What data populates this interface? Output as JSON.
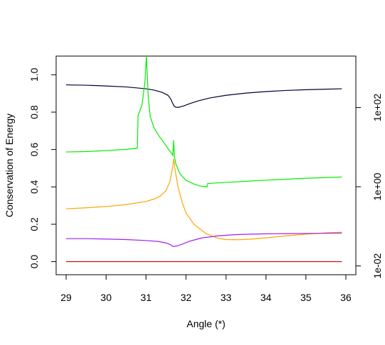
{
  "chart_data": {
    "type": "line",
    "title": "",
    "xlabel": "Angle (*)",
    "ylabel": "Conservation of Energy",
    "y2label": "",
    "xlim": [
      28.75,
      36.25
    ],
    "ylim": [
      -0.07,
      1.1
    ],
    "y2_scale": "log",
    "y2lim": [
      0.006,
      2000
    ],
    "x_ticks": [
      29,
      30,
      31,
      32,
      33,
      34,
      35,
      36
    ],
    "x_tick_labels": [
      "29",
      "30",
      "31",
      "32",
      "33",
      "34",
      "35",
      "36"
    ],
    "y_ticks": [
      0.0,
      0.2,
      0.4,
      0.6,
      0.8,
      1.0
    ],
    "y_tick_labels": [
      "0.0",
      "0.2",
      "0.4",
      "0.6",
      "0.8",
      "1.0"
    ],
    "y2_ticks": [
      0.01,
      1,
      100
    ],
    "y2_tick_labels": [
      "1e-02",
      "1e+00",
      "1e+02"
    ],
    "grid": false,
    "legend": "none",
    "series": [
      {
        "color": "#000033",
        "points": [
          [
            29.0,
            0.946
          ],
          [
            29.5,
            0.944
          ],
          [
            30.0,
            0.94
          ],
          [
            30.5,
            0.935
          ],
          [
            31.0,
            0.925
          ],
          [
            31.2,
            0.918
          ],
          [
            31.4,
            0.906
          ],
          [
            31.55,
            0.89
          ],
          [
            31.62,
            0.87
          ],
          [
            31.66,
            0.85
          ],
          [
            31.7,
            0.833
          ],
          [
            31.75,
            0.826
          ],
          [
            31.82,
            0.826
          ],
          [
            31.95,
            0.834
          ],
          [
            32.1,
            0.846
          ],
          [
            32.3,
            0.86
          ],
          [
            32.6,
            0.876
          ],
          [
            33.0,
            0.89
          ],
          [
            33.5,
            0.902
          ],
          [
            34.0,
            0.91
          ],
          [
            34.5,
            0.916
          ],
          [
            35.0,
            0.92
          ],
          [
            35.5,
            0.923
          ],
          [
            35.9,
            0.925
          ]
        ]
      },
      {
        "color": "#00ee00",
        "points": [
          [
            29.0,
            0.587
          ],
          [
            29.5,
            0.589
          ],
          [
            30.0,
            0.594
          ],
          [
            30.5,
            0.601
          ],
          [
            30.78,
            0.607
          ],
          [
            30.8,
            0.78
          ],
          [
            30.9,
            0.84
          ],
          [
            30.97,
            0.96
          ],
          [
            31.01,
            1.1
          ],
          [
            31.05,
            0.9
          ],
          [
            31.1,
            0.78
          ],
          [
            31.2,
            0.715
          ],
          [
            31.3,
            0.68
          ],
          [
            31.4,
            0.651
          ],
          [
            31.5,
            0.621
          ],
          [
            31.6,
            0.59
          ],
          [
            31.67,
            0.57
          ],
          [
            31.69,
            0.65
          ],
          [
            31.71,
            0.56
          ],
          [
            31.75,
            0.52
          ],
          [
            31.85,
            0.47
          ],
          [
            32.0,
            0.435
          ],
          [
            32.2,
            0.415
          ],
          [
            32.35,
            0.405
          ],
          [
            32.53,
            0.4
          ],
          [
            32.54,
            0.418
          ],
          [
            33.0,
            0.424
          ],
          [
            33.5,
            0.43
          ],
          [
            34.0,
            0.436
          ],
          [
            34.5,
            0.441
          ],
          [
            35.0,
            0.446
          ],
          [
            35.5,
            0.45
          ],
          [
            35.9,
            0.453
          ]
        ]
      },
      {
        "color": "#ffa500",
        "points": [
          [
            29.0,
            0.283
          ],
          [
            29.5,
            0.288
          ],
          [
            30.0,
            0.295
          ],
          [
            30.5,
            0.305
          ],
          [
            31.0,
            0.322
          ],
          [
            31.2,
            0.335
          ],
          [
            31.35,
            0.35
          ],
          [
            31.5,
            0.38
          ],
          [
            31.6,
            0.43
          ],
          [
            31.67,
            0.51
          ],
          [
            31.69,
            0.55
          ],
          [
            31.72,
            0.5
          ],
          [
            31.8,
            0.4
          ],
          [
            31.9,
            0.32
          ],
          [
            32.0,
            0.26
          ],
          [
            32.2,
            0.2
          ],
          [
            32.5,
            0.15
          ],
          [
            32.8,
            0.125
          ],
          [
            33.0,
            0.118
          ],
          [
            33.3,
            0.117
          ],
          [
            33.6,
            0.12
          ],
          [
            34.0,
            0.127
          ],
          [
            34.5,
            0.138
          ],
          [
            35.0,
            0.147
          ],
          [
            35.5,
            0.154
          ],
          [
            35.9,
            0.157
          ]
        ]
      },
      {
        "color": "#a020f0",
        "points": [
          [
            29.0,
            0.123
          ],
          [
            29.5,
            0.123
          ],
          [
            30.0,
            0.121
          ],
          [
            30.5,
            0.118
          ],
          [
            31.0,
            0.113
          ],
          [
            31.3,
            0.108
          ],
          [
            31.5,
            0.1
          ],
          [
            31.62,
            0.09
          ],
          [
            31.67,
            0.082
          ],
          [
            31.72,
            0.082
          ],
          [
            31.8,
            0.086
          ],
          [
            31.9,
            0.093
          ],
          [
            32.1,
            0.11
          ],
          [
            32.4,
            0.127
          ],
          [
            32.8,
            0.138
          ],
          [
            33.2,
            0.144
          ],
          [
            33.6,
            0.147
          ],
          [
            34.0,
            0.149
          ],
          [
            34.5,
            0.15
          ],
          [
            35.0,
            0.151
          ],
          [
            35.5,
            0.152
          ],
          [
            35.9,
            0.153
          ]
        ]
      },
      {
        "color": "#d40000",
        "points": [
          [
            29.0,
            0.0
          ],
          [
            35.9,
            0.0
          ]
        ]
      }
    ]
  }
}
